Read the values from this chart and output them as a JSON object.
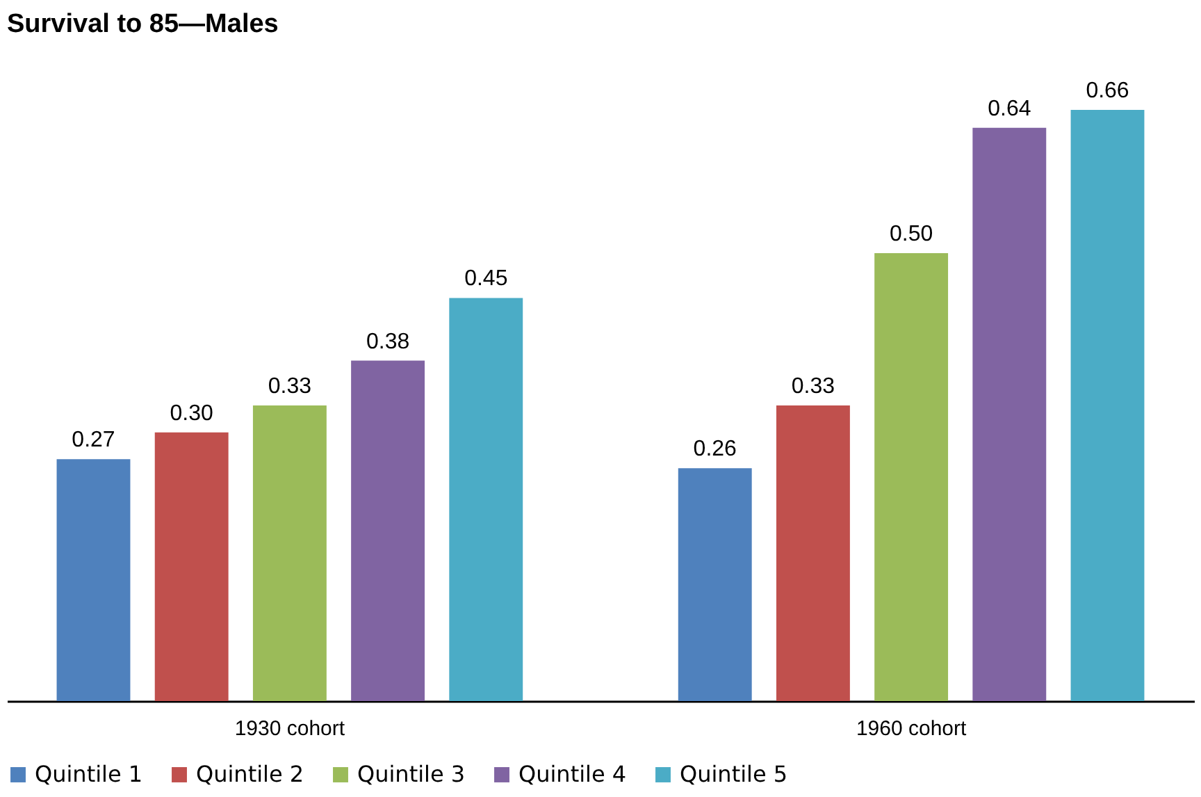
{
  "chart_data": {
    "type": "bar",
    "title": "Survival to 85—Males",
    "categories": [
      "1930 cohort",
      "1960 cohort"
    ],
    "series": [
      {
        "name": "Quintile 1",
        "color": "#4f81bd",
        "values": [
          0.27,
          0.26
        ],
        "value_labels": [
          "0.27",
          "0.26"
        ]
      },
      {
        "name": "Quintile 2",
        "color": "#c0504d",
        "values": [
          0.3,
          0.33
        ],
        "value_labels": [
          "0.30",
          "0.33"
        ]
      },
      {
        "name": "Quintile 3",
        "color": "#9bbb59",
        "values": [
          0.33,
          0.5
        ],
        "value_labels": [
          "0.33",
          "0.50"
        ]
      },
      {
        "name": "Quintile 4",
        "color": "#8064a2",
        "values": [
          0.38,
          0.64
        ],
        "value_labels": [
          "0.38",
          "0.64"
        ]
      },
      {
        "name": "Quintile 5",
        "color": "#4bacc6",
        "values": [
          0.45,
          0.66
        ],
        "value_labels": [
          "0.45",
          "0.66"
        ]
      }
    ],
    "legend": "bottom",
    "grid": false
  }
}
